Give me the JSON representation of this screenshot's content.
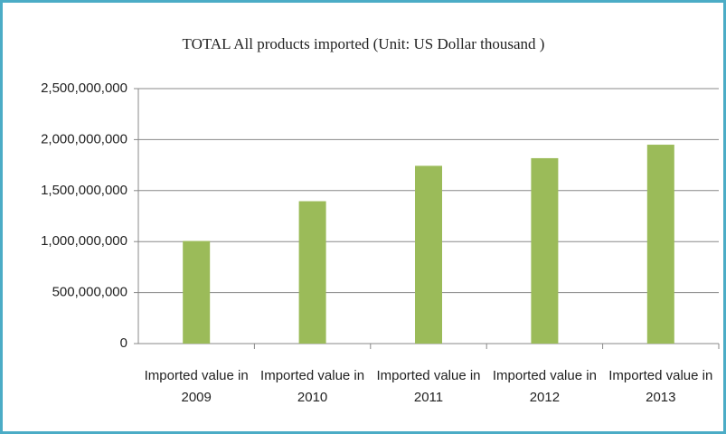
{
  "chart_data": {
    "type": "bar",
    "title": "TOTAL All products imported (Unit: US Dollar thousand )",
    "categories": [
      "Imported value in 2009",
      "Imported value in 2010",
      "Imported value in 2011",
      "Imported value in 2012",
      "Imported value in 2013"
    ],
    "values": [
      1006000000,
      1396000000,
      1743000000,
      1818000000,
      1950000000
    ],
    "color": "#9bbb59",
    "ylim": [
      0,
      2500000000
    ],
    "yticks": [
      0,
      {
        "value": 500000000,
        "label": "500,000,000"
      },
      {
        "value": 1000000000,
        "label": "1,000,000,000"
      },
      {
        "value": 1500000000,
        "label": "1,500,000,000"
      },
      {
        "value": 2000000000,
        "label": "2,000,000,000"
      },
      {
        "value": 2500000000,
        "label": "2,500,000,000"
      }
    ],
    "grid": true
  }
}
